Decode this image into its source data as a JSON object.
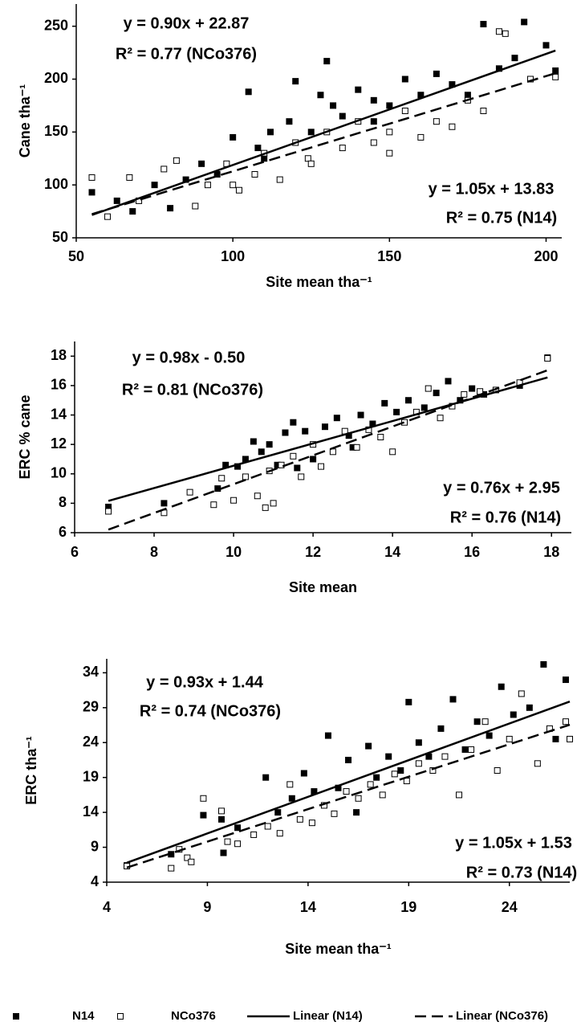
{
  "chart_data": [
    {
      "type": "scatter",
      "xlabel": "Site mean tha⁻¹",
      "ylabel": "Cane tha⁻¹",
      "xlim": [
        50,
        205
      ],
      "ylim": [
        50,
        271
      ],
      "xticks": [
        50,
        100,
        150,
        200
      ],
      "yticks": [
        50,
        100,
        150,
        200,
        250
      ],
      "annotations": [
        "y = 0.90x + 22.87",
        "R² = 0.77 (NCo376)",
        "y = 1.05x + 13.83",
        "R² = 0.75 (N14)"
      ],
      "series": [
        {
          "name": "N14",
          "marker": "filled-square",
          "color": "#000000",
          "x": [
            55,
            63,
            68,
            75,
            80,
            85,
            90,
            95,
            100,
            105,
            108,
            112,
            118,
            120,
            125,
            128,
            132,
            135,
            140,
            145,
            150,
            155,
            160,
            165,
            170,
            175,
            180,
            185,
            190,
            193,
            200,
            203,
            110,
            130,
            145
          ],
          "values": [
            93,
            85,
            75,
            100,
            78,
            105,
            120,
            110,
            145,
            188,
            135,
            150,
            160,
            198,
            150,
            185,
            175,
            165,
            190,
            180,
            175,
            200,
            185,
            205,
            195,
            185,
            252,
            210,
            220,
            254,
            232,
            208,
            125,
            217,
            160
          ]
        },
        {
          "name": "NCo376",
          "marker": "open-square",
          "color": "#000000",
          "x": [
            55,
            60,
            67,
            70,
            78,
            82,
            88,
            92,
            98,
            102,
            107,
            110,
            115,
            120,
            124,
            130,
            135,
            140,
            145,
            150,
            155,
            160,
            165,
            170,
            175,
            180,
            185,
            187,
            195,
            203,
            100,
            125,
            150
          ],
          "values": [
            107,
            70,
            107,
            85,
            115,
            123,
            80,
            100,
            120,
            95,
            110,
            130,
            105,
            140,
            125,
            150,
            135,
            160,
            140,
            150,
            170,
            145,
            160,
            155,
            180,
            170,
            245,
            243,
            200,
            202,
            100,
            120,
            130
          ]
        },
        {
          "name": "Linear (N14)",
          "marker": "solid-line",
          "color": "#000000",
          "x": [
            55,
            203
          ],
          "values": [
            71.58,
            226.98
          ]
        },
        {
          "name": "Linear (NCo376)",
          "marker": "dashed-line",
          "color": "#000000",
          "x": [
            55,
            203
          ],
          "values": [
            72.37,
            205.57
          ]
        }
      ]
    },
    {
      "type": "scatter",
      "xlabel": "Site mean",
      "ylabel": "ERC % cane",
      "xlim": [
        6,
        18.5
      ],
      "ylim": [
        6,
        19
      ],
      "xticks": [
        6,
        8,
        10,
        12,
        14,
        16,
        18
      ],
      "yticks": [
        6,
        8,
        10,
        12,
        14,
        16,
        18
      ],
      "annotations": [
        "y = 0.98x - 0.50",
        "R² = 0.81 (NCo376)",
        "y = 0.76x + 2.95",
        "R² = 0.76 (N14)"
      ],
      "series": [
        {
          "name": "N14",
          "marker": "filled-square",
          "color": "#000000",
          "x": [
            6.85,
            8.25,
            9.6,
            9.8,
            10.1,
            10.3,
            10.5,
            10.7,
            10.9,
            11.1,
            11.3,
            11.5,
            11.8,
            12.0,
            12.3,
            12.6,
            12.9,
            13.2,
            13.5,
            13.8,
            14.1,
            14.4,
            14.8,
            15.1,
            15.4,
            15.7,
            16.0,
            16.3,
            17.2,
            17.9,
            11.6,
            13.0
          ],
          "values": [
            7.75,
            8.0,
            9.0,
            10.6,
            10.5,
            11.0,
            12.2,
            11.5,
            12.0,
            10.6,
            12.8,
            13.5,
            12.9,
            11.0,
            13.2,
            13.8,
            12.6,
            14.0,
            13.4,
            14.8,
            14.2,
            15.0,
            14.5,
            15.5,
            16.3,
            15.0,
            15.8,
            15.4,
            16.0,
            17.9,
            10.4,
            11.8
          ]
        },
        {
          "name": "NCo376",
          "marker": "open-square",
          "color": "#000000",
          "x": [
            6.85,
            8.25,
            8.9,
            9.5,
            9.7,
            10.0,
            10.3,
            10.6,
            10.8,
            11.0,
            11.2,
            11.5,
            11.7,
            12.0,
            12.2,
            12.5,
            12.8,
            13.1,
            13.4,
            13.7,
            14.0,
            14.3,
            14.6,
            14.9,
            15.2,
            15.5,
            15.8,
            16.2,
            16.6,
            17.2,
            17.9,
            10.9
          ],
          "values": [
            7.45,
            7.35,
            8.75,
            7.9,
            9.7,
            8.2,
            9.8,
            8.5,
            7.7,
            8.0,
            10.6,
            11.2,
            9.8,
            12.0,
            10.5,
            11.5,
            12.9,
            11.8,
            13.0,
            12.5,
            11.5,
            13.5,
            14.2,
            15.8,
            13.8,
            14.6,
            15.4,
            15.6,
            15.7,
            16.2,
            17.85,
            10.2
          ]
        },
        {
          "name": "Linear (N14)",
          "marker": "solid-line",
          "color": "#000000",
          "x": [
            6.85,
            17.9
          ],
          "values": [
            8.16,
            16.55
          ]
        },
        {
          "name": "Linear (NCo376)",
          "marker": "dashed-line",
          "color": "#000000",
          "x": [
            6.85,
            17.9
          ],
          "values": [
            6.21,
            17.04
          ]
        }
      ]
    },
    {
      "type": "scatter",
      "xlabel": "Site mean tha⁻¹",
      "ylabel": "ERC tha⁻¹",
      "xlim": [
        4,
        27
      ],
      "ylim": [
        4,
        36
      ],
      "xticks": [
        4,
        9,
        14,
        19,
        24
      ],
      "yticks": [
        4,
        9,
        14,
        19,
        24,
        29,
        34
      ],
      "annotations": [
        "y = 0.93x + 1.44",
        "R² = 0.74 (NCo376)",
        "y = 1.05x + 1.53",
        "R² = 0.73 (N14)"
      ],
      "series": [
        {
          "name": "N14",
          "marker": "filled-square",
          "color": "#000000",
          "x": [
            5.0,
            7.2,
            8.8,
            9.8,
            9.7,
            10.5,
            11.9,
            12.5,
            13.2,
            13.8,
            14.3,
            15.0,
            15.5,
            16.0,
            16.4,
            17.0,
            17.4,
            18.0,
            18.6,
            19.0,
            19.5,
            20.0,
            20.6,
            21.2,
            21.8,
            22.4,
            23.0,
            23.6,
            24.2,
            25.0,
            25.7,
            26.8,
            26.3
          ],
          "values": [
            6.4,
            8.0,
            13.6,
            8.2,
            13.0,
            11.8,
            19.0,
            14.0,
            16.0,
            19.6,
            17.0,
            25.0,
            17.5,
            21.5,
            14.0,
            23.5,
            19.0,
            22.0,
            20.0,
            29.8,
            24.0,
            22.0,
            26.0,
            30.2,
            23.0,
            27.0,
            25.0,
            32.0,
            28.0,
            29.0,
            35.2,
            33.0,
            24.5
          ]
        },
        {
          "name": "NCo376",
          "marker": "open-square",
          "color": "#000000",
          "x": [
            5.0,
            7.2,
            7.6,
            8.0,
            8.2,
            8.8,
            9.7,
            10.0,
            10.5,
            11.3,
            12.0,
            12.6,
            13.1,
            13.6,
            14.2,
            14.8,
            15.3,
            15.9,
            16.5,
            17.1,
            17.7,
            18.3,
            18.9,
            19.5,
            20.2,
            20.8,
            21.5,
            22.1,
            22.8,
            23.4,
            24.0,
            24.6,
            25.4,
            26.0,
            26.8,
            27.0
          ],
          "values": [
            6.3,
            6.0,
            8.7,
            7.5,
            6.9,
            16.0,
            14.2,
            9.8,
            9.5,
            10.8,
            12.0,
            11.0,
            18.0,
            13.0,
            12.5,
            15.0,
            13.8,
            17.0,
            16.0,
            18.0,
            16.5,
            19.5,
            18.5,
            21.0,
            20.0,
            22.0,
            16.5,
            23.0,
            27.0,
            20.0,
            24.5,
            31.0,
            21.0,
            26.0,
            27.0,
            24.5
          ]
        },
        {
          "name": "Linear (N14)",
          "marker": "solid-line",
          "color": "#000000",
          "x": [
            5,
            27
          ],
          "values": [
            6.78,
            29.88
          ]
        },
        {
          "name": "Linear (NCo376)",
          "marker": "dashed-line",
          "color": "#000000",
          "x": [
            5,
            27
          ],
          "values": [
            6.09,
            26.55
          ]
        }
      ]
    }
  ]
}
